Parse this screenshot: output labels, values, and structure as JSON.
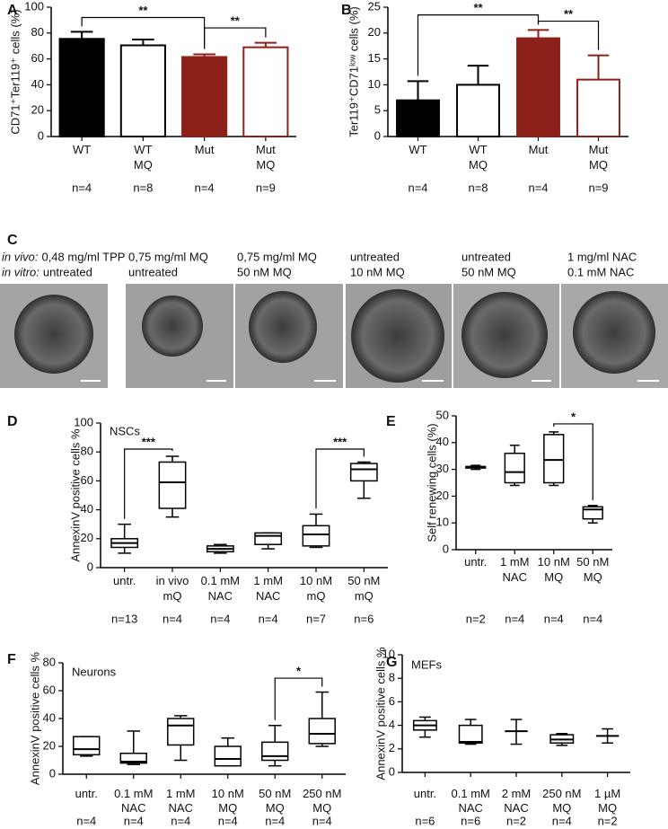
{
  "chart_data": [
    {
      "type": "bar",
      "panel": "A",
      "ylabel": "CD71⁺Ter119⁺ cells (%)",
      "categories": [
        "WT",
        "WT\nMQ",
        "Mut",
        "Mut\nMQ"
      ],
      "n_labels": [
        "n=4",
        "n=8",
        "n=4",
        "n=9"
      ],
      "values": [
        75.5,
        70.5,
        61.5,
        69
      ],
      "errors": [
        5.5,
        4.5,
        2,
        3.5
      ],
      "fill_colors": [
        "#000000",
        "#ffffff",
        "#8b2119",
        "#ffffff"
      ],
      "edge_colors": [
        "#000000",
        "#000000",
        "#8b2119",
        "#8b2119"
      ],
      "ylim": [
        0,
        100
      ],
      "yticks": [
        0,
        20,
        40,
        60,
        80,
        100
      ],
      "annotations": [
        {
          "text": "**",
          "from": "WT",
          "to": "Mut",
          "y": 92
        },
        {
          "text": "**",
          "from": "Mut",
          "to": "Mut\nMQ",
          "y": 84
        }
      ]
    },
    {
      "type": "bar",
      "panel": "B",
      "ylabel": "Ter119⁺CD71ˡᵒʷ cells (%)",
      "categories": [
        "WT",
        "WT\nMQ",
        "Mut",
        "Mut\nMQ"
      ],
      "n_labels": [
        "n=4",
        "n=8",
        "n=4",
        "n=9"
      ],
      "values": [
        7,
        10,
        19,
        11
      ],
      "errors": [
        3.7,
        3.7,
        1.6,
        4.7
      ],
      "fill_colors": [
        "#000000",
        "#ffffff",
        "#8b2119",
        "#ffffff"
      ],
      "edge_colors": [
        "#000000",
        "#000000",
        "#8b2119",
        "#8b2119"
      ],
      "ylim": [
        0,
        25
      ],
      "yticks": [
        0,
        5,
        10,
        15,
        20,
        25
      ],
      "annotations": [
        {
          "text": "**",
          "from": "WT",
          "to": "Mut",
          "y": 23.5
        },
        {
          "text": "**",
          "from": "Mut",
          "to": "Mut\nMQ",
          "y": 22.3
        }
      ]
    },
    {
      "type": "box",
      "panel": "D",
      "title": "NSCs",
      "ylabel": "AnnexinV positive cells %",
      "categories": [
        "untr.",
        "in vivo\nmQ",
        "0.1 mM\nNAC",
        "1 mM\nNAC",
        "10 nM\nmQ",
        "50 nM\nmQ"
      ],
      "n_labels": [
        "n=13",
        "n=4",
        "n=4",
        "n=4",
        "n=7",
        "n=6"
      ],
      "min": [
        10,
        35,
        10,
        13,
        14,
        48
      ],
      "q1": [
        14,
        41,
        11,
        16,
        15,
        60
      ],
      "median": [
        17,
        59,
        13,
        22,
        23,
        68
      ],
      "q3": [
        20,
        73,
        15,
        24,
        29,
        72
      ],
      "max": [
        30,
        77,
        16,
        24,
        37,
        73
      ],
      "ylim": [
        0,
        100
      ],
      "yticks": [
        0,
        20,
        40,
        60,
        80,
        100
      ],
      "annotations": [
        {
          "text": "***",
          "from": "untr.",
          "to": "in vivo\nmQ",
          "y": 82
        },
        {
          "text": "***",
          "from": "10 nM\nmQ",
          "to": "50 nM\nmQ",
          "y": 82
        }
      ]
    },
    {
      "type": "box",
      "panel": "E",
      "ylabel": "Self renewing cells (%)",
      "categories": [
        "untr.",
        "1 mM\nNAC",
        "10 nM\nMQ",
        "50 nM\nMQ"
      ],
      "n_labels": [
        "n=2",
        "n=4",
        "n=4",
        "n=4"
      ],
      "min": [
        30,
        24,
        24,
        10
      ],
      "q1": [
        30.5,
        25,
        25,
        11.5
      ],
      "median": [
        31,
        29,
        33.5,
        15
      ],
      "q3": [
        31,
        36,
        43,
        16
      ],
      "max": [
        31.5,
        39,
        44,
        16.5
      ],
      "ylim": [
        0,
        50
      ],
      "yticks": [
        0,
        10,
        20,
        30,
        40,
        50
      ],
      "annotations": [
        {
          "text": "*",
          "from": "10 nM\nMQ",
          "to": "50 nM\nMQ",
          "y": 47
        }
      ]
    },
    {
      "type": "box",
      "panel": "F",
      "title": "Neurons",
      "ylabel": "AnnexinV positive cells %",
      "categories": [
        "untr.",
        "0.1 mM\nNAC",
        "1 mM\nNAC",
        "10 nM\nMQ",
        "50 nM\nMQ",
        "250 nM\nMQ"
      ],
      "n_labels": [
        "n=4",
        "n=4",
        "n=4",
        "n=4",
        "n=4",
        "n=4"
      ],
      "min": [
        13,
        7,
        10,
        6,
        6,
        20
      ],
      "q1": [
        14,
        8,
        21,
        6,
        10,
        22
      ],
      "median": [
        18,
        9,
        35,
        11,
        13,
        29
      ],
      "q3": [
        27,
        15,
        40,
        20,
        23,
        40
      ],
      "max": [
        27,
        31,
        42,
        26,
        35,
        59
      ],
      "ylim": [
        0,
        80
      ],
      "yticks": [
        0,
        20,
        40,
        60,
        80
      ],
      "annotations": [
        {
          "text": "*",
          "from": "50 nM\nMQ",
          "to": "250 nM\nMQ",
          "y": 69
        }
      ]
    },
    {
      "type": "box",
      "panel": "G",
      "title": "MEFs",
      "ylabel": "AnnexinV positive cells %",
      "categories": [
        "untr.",
        "0.1 mM\nNAC",
        "2 mM\nNAC",
        "250 nM\nMQ",
        "1 µM\nMQ"
      ],
      "n_labels": [
        "n=6",
        "n=6",
        "n=2",
        "n=4",
        "n=2"
      ],
      "min": [
        3,
        2.4,
        2.4,
        2.3,
        2.5
      ],
      "q1": [
        3.6,
        2.5,
        3.5,
        2.5,
        3.1
      ],
      "median": [
        4,
        2.6,
        3.5,
        2.8,
        3.1
      ],
      "q3": [
        4.4,
        4,
        3.5,
        3.2,
        3.1
      ],
      "max": [
        4.7,
        4.5,
        4.5,
        3.3,
        3.7
      ],
      "ylim": [
        0,
        10
      ],
      "yticks": [
        0,
        2,
        4,
        6,
        8,
        10
      ],
      "annotations": []
    }
  ],
  "image_panel": {
    "panel": "C",
    "row_labels": [
      "in vivo:",
      "in vitro:"
    ],
    "columns": [
      [
        "0,48 mg/ml TPP",
        "untreated"
      ],
      [
        "0,75 mg/ml MQ",
        "untreated"
      ],
      [
        "0,75 mg/ml MQ",
        "50 nM MQ"
      ],
      [
        "untreated",
        "10 nM MQ"
      ],
      [
        "untreated",
        "50 nM MQ"
      ],
      [
        "1 mg/ml NAC",
        "0.1 mM NAC"
      ]
    ]
  }
}
